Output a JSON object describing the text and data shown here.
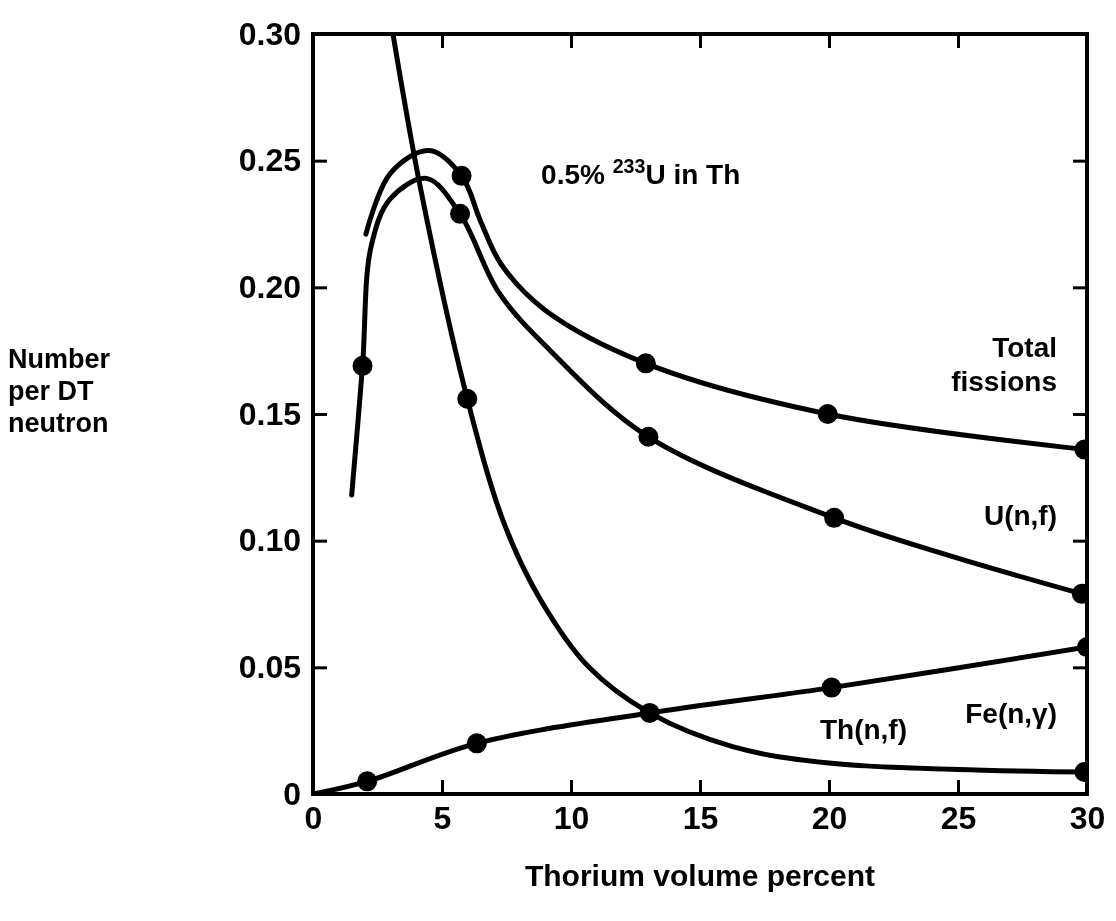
{
  "chart_data": {
    "type": "line",
    "xlabel": "Thorium volume percent",
    "ylabel": "Number per DT neutron",
    "annotations": [
      "0.5% $^{233}$U in Th"
    ],
    "xlim": [
      0,
      30
    ],
    "xticks": [
      0,
      5,
      10,
      15,
      20,
      25,
      30
    ],
    "ylim": [
      0,
      0.3
    ],
    "yticks": [
      0,
      0.05,
      {
        "value": 0.1,
        "label": "0.10"
      },
      0.15,
      {
        "value": 0.2,
        "label": "0.20"
      },
      0.25,
      {
        "value": 0.3,
        "label": "0.30"
      }
    ],
    "grid": false,
    "legend": "right",
    "marker": "circle",
    "line_style": "solid",
    "series": [
      {
        "name": "Total fissions",
        "marker": "none",
        "color": "#000000",
        "x": [
          2.05,
          3.0,
          4.5,
          5.76,
          6.5,
          7.3,
          9.0,
          12.9,
          19.95,
          29.9
        ],
        "values": [
          0.221,
          0.245,
          0.254,
          0.244,
          0.226,
          0.209,
          0.191,
          0.17,
          0.15,
          0.136
        ]
      },
      {
        "name": "U(n,f)",
        "marker": "none",
        "color": "#000000",
        "x": [
          1.5,
          1.92,
          2.25,
          3.0,
          4.4,
          5.7,
          7.2,
          9.2,
          13.0,
          20.2,
          24.7,
          29.8
        ],
        "values": [
          0.118,
          0.169,
          0.216,
          0.235,
          0.243,
          0.229,
          0.198,
          0.175,
          0.141,
          0.109,
          0.094,
          0.079
        ]
      },
      {
        "name": "Th(n,f)",
        "marker": "none",
        "color": "#000000",
        "x": [
          3.1,
          4.17,
          5.98,
          7.4,
          8.8,
          10.7,
          13.05,
          16.3,
          20.2,
          29.9
        ],
        "values": [
          0.3,
          0.239,
          0.156,
          0.107,
          0.077,
          0.05,
          0.032,
          0.0186,
          0.012,
          0.0087
        ]
      },
      {
        "name": "Fe(n,γ)",
        "marker": "none",
        "color": "#000000",
        "x": [
          0,
          2.1,
          6.35,
          13.05,
          20.1,
          30
        ],
        "values": [
          0,
          0.005,
          0.02,
          0.032,
          0.042,
          0.058
        ]
      },
      {
        "type": "scatter",
        "color": "#000000",
        "x": [
          1.92,
          5.76,
          5.7,
          5.98,
          12.9,
          13.0,
          13.05,
          19.95,
          20.2,
          20.1,
          29.9,
          29.8,
          29.9,
          30,
          2.1,
          6.35
        ],
        "values": [
          0.169,
          0.244,
          0.229,
          0.156,
          0.17,
          0.141,
          0.032,
          0.15,
          0.109,
          0.042,
          0.136,
          0.079,
          0.0087,
          0.058,
          0.005,
          0.02
        ]
      }
    ]
  }
}
